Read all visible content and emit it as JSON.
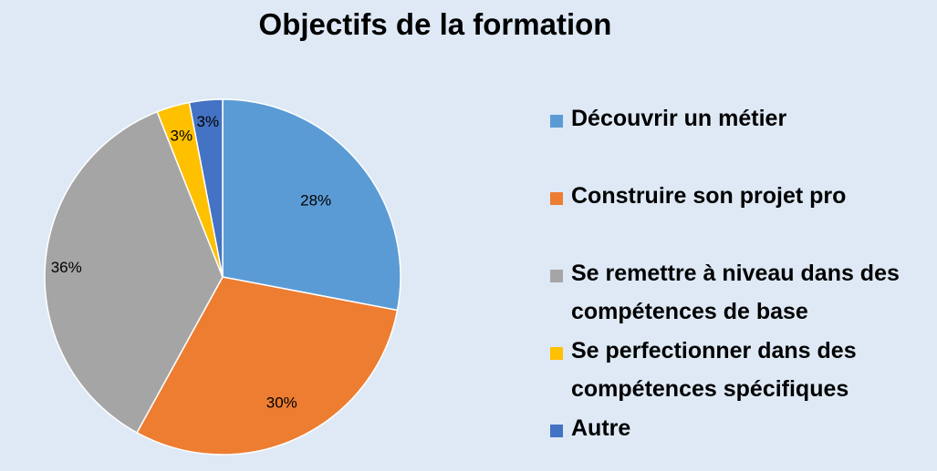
{
  "chart_data": {
    "type": "pie",
    "title": "Objectifs de la formation",
    "categories": [
      "Découvrir un métier",
      "Construire son projet pro",
      "Se remettre à niveau dans des compétences de base",
      "Se perfectionner dans des compétences spécifiques",
      "Autre"
    ],
    "legend_lines": [
      [
        "Découvrir un métier"
      ],
      [
        "Construire son projet pro"
      ],
      [
        "Se remettre à niveau dans des",
        "compétences de base"
      ],
      [
        "Se perfectionner dans des",
        "compétences spécifiques"
      ],
      [
        "Autre"
      ]
    ],
    "values": [
      28,
      30,
      36,
      3,
      3
    ],
    "labels": [
      "28%",
      "30%",
      "36%",
      "3%",
      "3%"
    ],
    "colors": [
      "#5b9bd5",
      "#ed7d31",
      "#a5a5a5",
      "#ffc000",
      "#4472c4"
    ],
    "legend_position": "right"
  }
}
